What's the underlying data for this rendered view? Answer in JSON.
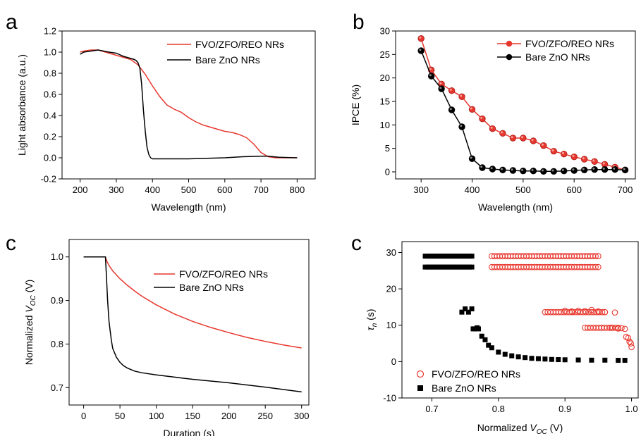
{
  "colors": {
    "fvo": "#e8372e",
    "bare": "#000000"
  },
  "chart_data": [
    {
      "type": "line",
      "panel_label": "a",
      "xlabel": "Wavelength (nm)",
      "ylabel": "Light absorbance (a.u.)",
      "xlim": [
        150,
        850
      ],
      "ylim": [
        -0.2,
        1.2
      ],
      "xticks": [
        200,
        300,
        400,
        500,
        600,
        700,
        800
      ],
      "yticks": [
        -0.2,
        0.0,
        0.2,
        0.4,
        0.6,
        0.8,
        1.0,
        1.2
      ],
      "legend_position": "top-right",
      "series": [
        {
          "name": "FVO/ZFO/REO NRs",
          "color": "#e8372e",
          "x": [
            200,
            210,
            230,
            250,
            280,
            300,
            320,
            340,
            360,
            380,
            400,
            420,
            440,
            460,
            480,
            500,
            520,
            540,
            560,
            580,
            600,
            620,
            640,
            660,
            680,
            700,
            720,
            740,
            760,
            780,
            800
          ],
          "y": [
            1.0,
            1.01,
            1.02,
            1.02,
            0.99,
            0.97,
            0.95,
            0.93,
            0.88,
            0.79,
            0.68,
            0.58,
            0.5,
            0.46,
            0.43,
            0.38,
            0.34,
            0.31,
            0.29,
            0.27,
            0.25,
            0.24,
            0.22,
            0.19,
            0.13,
            0.05,
            0.01,
            0.0,
            0.0,
            0.0,
            0.0
          ]
        },
        {
          "name": "Bare ZnO NRs",
          "color": "#000000",
          "x": [
            200,
            210,
            230,
            250,
            280,
            300,
            320,
            340,
            350,
            355,
            360,
            365,
            370,
            375,
            380,
            385,
            390,
            395,
            400,
            420,
            500,
            600,
            650,
            700,
            720,
            750,
            800
          ],
          "y": [
            0.98,
            1.0,
            1.01,
            1.02,
            1.0,
            0.99,
            0.96,
            0.94,
            0.93,
            0.92,
            0.9,
            0.85,
            0.7,
            0.45,
            0.25,
            0.1,
            0.03,
            0.0,
            -0.01,
            -0.01,
            -0.01,
            0.0,
            0.01,
            0.015,
            0.015,
            0.005,
            0.0
          ]
        }
      ]
    },
    {
      "type": "line",
      "panel_label": "b",
      "xlabel": "Wavelength (nm)",
      "ylabel": "IPCE (%)",
      "xlim": [
        250,
        720
      ],
      "ylim": [
        -1.5,
        30
      ],
      "xticks": [
        300,
        400,
        500,
        600,
        700
      ],
      "yticks": [
        0,
        5,
        10,
        15,
        20,
        25,
        30
      ],
      "legend_position": "top-right",
      "series": [
        {
          "name": "FVO/ZFO/REO NRs",
          "color": "#e8372e",
          "x": [
            300,
            320,
            340,
            360,
            380,
            400,
            420,
            440,
            460,
            480,
            500,
            520,
            540,
            560,
            580,
            600,
            620,
            640,
            660,
            680,
            700
          ],
          "y": [
            28.4,
            21.7,
            18.7,
            17.3,
            16.0,
            13.3,
            11.3,
            9.2,
            8.2,
            7.2,
            7.2,
            6.6,
            5.6,
            4.4,
            3.8,
            3.2,
            2.7,
            2.2,
            1.6,
            1.0,
            0.4
          ]
        },
        {
          "name": "Bare ZnO NRs",
          "color": "#000000",
          "x": [
            300,
            320,
            340,
            360,
            380,
            400,
            420,
            440,
            460,
            480,
            500,
            520,
            540,
            560,
            580,
            600,
            620,
            640,
            660,
            680,
            700
          ],
          "y": [
            25.8,
            20.4,
            17.7,
            13.2,
            9.6,
            2.8,
            0.9,
            0.6,
            0.4,
            0.3,
            0.2,
            0.2,
            0.1,
            0.1,
            0.2,
            0.3,
            0.4,
            0.5,
            0.5,
            0.5,
            0.4
          ]
        }
      ]
    },
    {
      "type": "line",
      "panel_label": "c",
      "xlabel": "Duration (s)",
      "ylabel_main": "Normalized ",
      "ylabel_var": "V",
      "ylabel_sub": "OC",
      "ylabel_unit": " (V)",
      "xlim": [
        -20,
        310
      ],
      "ylim": [
        0.66,
        1.04
      ],
      "xticks": [
        0,
        50,
        100,
        150,
        200,
        250,
        300
      ],
      "yticks": [
        0.7,
        0.8,
        0.9,
        1.0
      ],
      "legend_position": "top-right",
      "series": [
        {
          "name": "FVO/ZFO/REO NRs",
          "color": "#e8372e",
          "x": [
            0,
            20,
            30,
            32,
            35,
            40,
            50,
            60,
            70,
            80,
            100,
            125,
            150,
            175,
            200,
            225,
            250,
            275,
            300
          ],
          "y": [
            1.0,
            1.0,
            1.0,
            0.99,
            0.98,
            0.968,
            0.95,
            0.935,
            0.922,
            0.91,
            0.89,
            0.869,
            0.852,
            0.838,
            0.826,
            0.815,
            0.806,
            0.798,
            0.791
          ]
        },
        {
          "name": "Bare ZnO NRs",
          "color": "#000000",
          "x": [
            0,
            20,
            30,
            31,
            33,
            35,
            38,
            40,
            45,
            50,
            55,
            60,
            70,
            80,
            100,
            125,
            150,
            175,
            200,
            250,
            300
          ],
          "y": [
            1.0,
            1.0,
            1.0,
            0.97,
            0.9,
            0.85,
            0.81,
            0.79,
            0.77,
            0.758,
            0.75,
            0.745,
            0.738,
            0.734,
            0.729,
            0.724,
            0.719,
            0.715,
            0.711,
            0.701,
            0.69
          ]
        }
      ]
    },
    {
      "type": "scatter",
      "panel_label": "c",
      "xlabel_main": "Normalized ",
      "xlabel_var": "V",
      "xlabel_sub": "OC",
      "xlabel_unit": " (V)",
      "ylabel_var": "τ",
      "ylabel_sub": "n",
      "ylabel_unit": " (s)",
      "xlim": [
        0.655,
        1.01
      ],
      "ylim": [
        -10,
        33
      ],
      "xticks": [
        0.7,
        0.8,
        0.9,
        1.0
      ],
      "xtick_labels": [
        "0.7",
        "0.8",
        "0.9",
        "1.0"
      ],
      "yticks": [
        -10,
        0,
        10,
        20,
        30
      ],
      "legend_position": "bottom-left",
      "series": [
        {
          "name": "FVO/ZFO/REO NRs",
          "color": "#e8372e",
          "marker": "open-circle",
          "segments": [
            {
              "x_from": 0.79,
              "x_to": 0.95,
              "y": 29
            },
            {
              "x_from": 0.79,
              "x_to": 0.95,
              "y": 26
            },
            {
              "x_from": 0.87,
              "x_to": 0.96,
              "y": 13.6
            },
            {
              "x_from": 0.93,
              "x_to": 0.98,
              "y": 9.3
            }
          ],
          "x": [
            0.9,
            0.91,
            0.92,
            0.93,
            0.94,
            0.95,
            0.96,
            0.97,
            0.975,
            0.98,
            0.985,
            0.99,
            0.992,
            0.995,
            0.997,
            0.999,
            1.0
          ],
          "y": [
            14,
            13.8,
            14,
            13.9,
            14.2,
            13.8,
            13.6,
            9.3,
            13.5,
            9.1,
            9.2,
            9.0,
            6.8,
            6.5,
            5.5,
            5.0,
            4.0
          ]
        },
        {
          "name": "Bare ZnO NRs",
          "color": "#000000",
          "marker": "filled-square",
          "segments": [
            {
              "x_from": 0.69,
              "x_to": 0.76,
              "y": 29
            },
            {
              "x_from": 0.69,
              "x_to": 0.76,
              "y": 26
            }
          ],
          "x": [
            0.745,
            0.75,
            0.755,
            0.76,
            0.762,
            0.765,
            0.768,
            0.77,
            0.775,
            0.78,
            0.785,
            0.79,
            0.8,
            0.81,
            0.82,
            0.83,
            0.84,
            0.85,
            0.86,
            0.87,
            0.88,
            0.89,
            0.9,
            0.92,
            0.94,
            0.96,
            0.98,
            0.99
          ],
          "y": [
            13.6,
            14.5,
            13.6,
            14.5,
            9.0,
            9.0,
            9.3,
            9.0,
            7.0,
            6.0,
            4.5,
            3.8,
            2.6,
            2.0,
            1.6,
            1.3,
            1.1,
            0.9,
            0.8,
            0.7,
            0.6,
            0.55,
            0.5,
            0.45,
            0.4,
            0.4,
            0.35,
            0.35
          ]
        }
      ]
    }
  ]
}
